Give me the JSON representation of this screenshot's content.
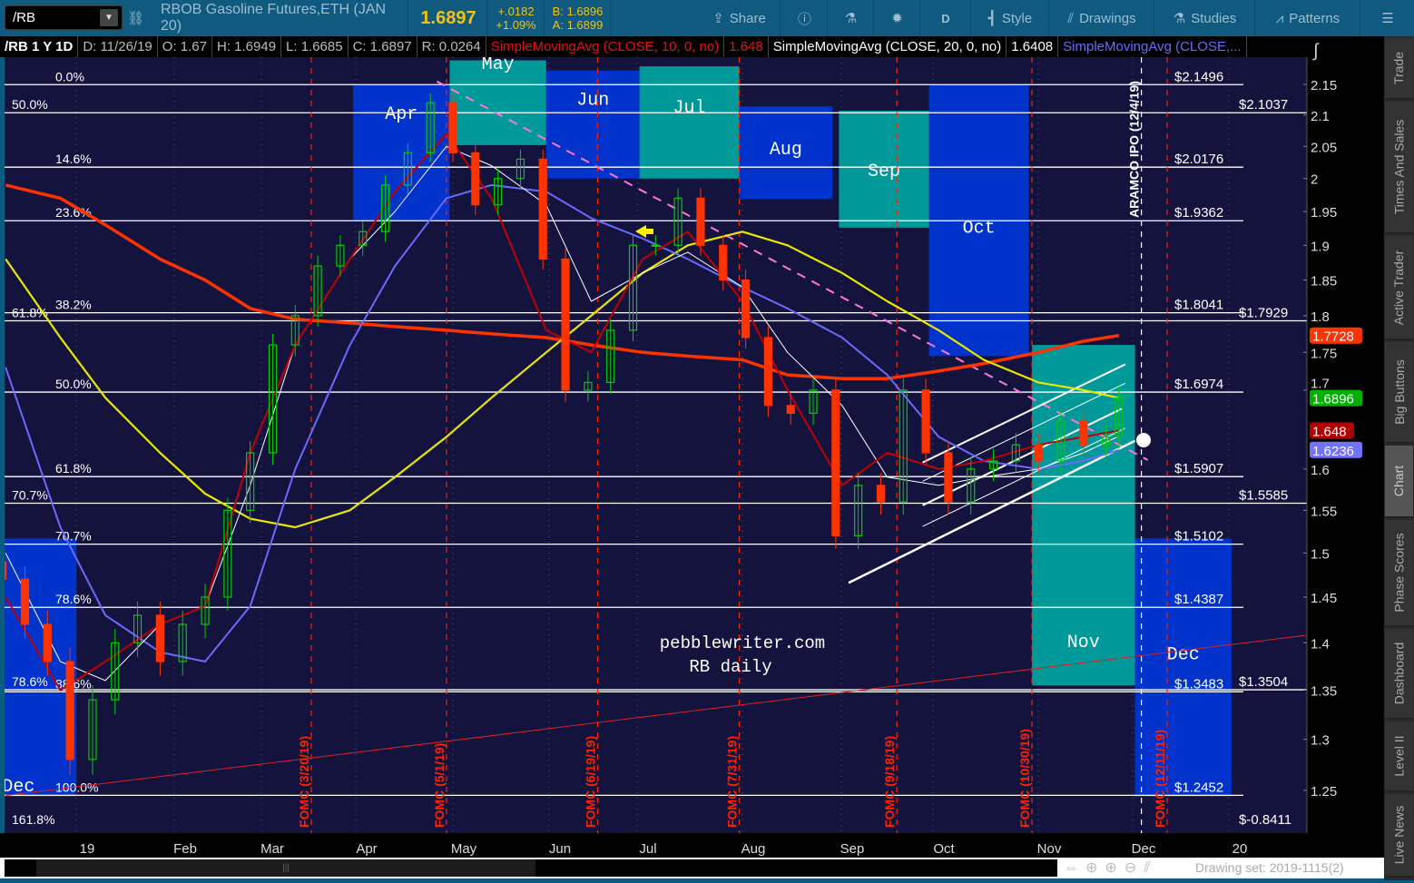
{
  "toolbar": {
    "symbol": "/RB",
    "description": "RBOB Gasoline Futures,ETH (JAN 20)",
    "last": "1.6897",
    "change": "+.0182",
    "change_pct": "+1.09%",
    "bid": "B: 1.6896",
    "ask": "A: 1.6899",
    "share": "Share",
    "period": "D",
    "style": "Style",
    "drawings": "Drawings",
    "studies": "Studies",
    "patterns": "Patterns",
    "icons": [
      "link-icon",
      "share-icon",
      "info-icon",
      "flask-icon",
      "gear-icon",
      "candle-icon",
      "drawings-icon",
      "studies-icon",
      "patterns-icon",
      "menu-icon"
    ]
  },
  "infobar": {
    "title": "/RB 1 Y 1D",
    "date": "D: 11/26/19",
    "open": "O: 1.67",
    "high": "H: 1.6949",
    "low": "L: 1.6685",
    "close": "C: 1.6897",
    "range": "R: 0.0264",
    "sma10_label": "SimpleMovingAvg (CLOSE, 10, 0, no)",
    "sma10_value": "1.648",
    "sma20_label": "SimpleMovingAvg (CLOSE, 20, 0, no)",
    "sma20_value": "1.6408",
    "sma50_label": "SimpleMovingAvg (CLOSE,..."
  },
  "sidebar": {
    "tabs": [
      "Trade",
      "Times And Sales",
      "Active Trader",
      "Big Buttons",
      "Chart",
      "Phase Scores",
      "Dashboard",
      "Level II",
      "Live News"
    ],
    "active": "Chart"
  },
  "footer": {
    "drawing_set": "Drawing set: 2019-1115(2)"
  },
  "chart_data": {
    "type": "candlestick",
    "scale": "log",
    "ylim": [
      1.21,
      2.2
    ],
    "yticks": [
      "2.15",
      "2.1",
      "2.05",
      "2",
      "1.95",
      "1.9",
      "1.85",
      "1.8",
      "1.75",
      "1.7",
      "1.6",
      "1.55",
      "1.5",
      "1.45",
      "1.4",
      "1.35",
      "1.3",
      "1.25"
    ],
    "xticks": [
      "19",
      "Feb",
      "Mar",
      "Apr",
      "May",
      "Jun",
      "Jul",
      "Aug",
      "Sep",
      "Oct",
      "Nov",
      "Dec",
      "20"
    ],
    "colors": {
      "background": "#14133e",
      "up": "#00cc00",
      "down": "#ff3300",
      "sma10": "#c00000",
      "sma20": "#ffffff",
      "sma50": "#6a6aff",
      "sma100": "#e8e800",
      "sma200": "#ff3300",
      "fib": "#ffffff",
      "fomc": "#ff2200",
      "trend": "#ff77dd",
      "box_blue": "#0033cc",
      "box_teal": "#009999"
    },
    "candles_weekly_close": [
      [
        "2018-12-14",
        1.47
      ],
      [
        "2018-12-21",
        1.42
      ],
      [
        "2018-12-28",
        1.38
      ],
      [
        "2019-01-04",
        1.28
      ],
      [
        "2019-01-11",
        1.34
      ],
      [
        "2019-01-18",
        1.4
      ],
      [
        "2019-01-25",
        1.43
      ],
      [
        "2019-02-01",
        1.38
      ],
      [
        "2019-02-08",
        1.42
      ],
      [
        "2019-02-15",
        1.45
      ],
      [
        "2019-02-22",
        1.55
      ],
      [
        "2019-03-01",
        1.62
      ],
      [
        "2019-03-08",
        1.76
      ],
      [
        "2019-03-15",
        1.8
      ],
      [
        "2019-03-22",
        1.87
      ],
      [
        "2019-03-29",
        1.9
      ],
      [
        "2019-04-05",
        1.92
      ],
      [
        "2019-04-12",
        1.99
      ],
      [
        "2019-04-19",
        2.04
      ],
      [
        "2019-04-26",
        2.12
      ],
      [
        "2019-05-03",
        2.04
      ],
      [
        "2019-05-10",
        1.96
      ],
      [
        "2019-05-17",
        2.0
      ],
      [
        "2019-05-24",
        2.03
      ],
      [
        "2019-05-31",
        1.88
      ],
      [
        "2019-06-07",
        1.7
      ],
      [
        "2019-06-14",
        1.71
      ],
      [
        "2019-06-21",
        1.78
      ],
      [
        "2019-06-28",
        1.9
      ],
      [
        "2019-07-05",
        1.9
      ],
      [
        "2019-07-12",
        1.97
      ],
      [
        "2019-07-19",
        1.9
      ],
      [
        "2019-07-26",
        1.85
      ],
      [
        "2019-08-02",
        1.77
      ],
      [
        "2019-08-09",
        1.68
      ],
      [
        "2019-08-16",
        1.67
      ],
      [
        "2019-08-23",
        1.7
      ],
      [
        "2019-08-30",
        1.52
      ],
      [
        "2019-09-06",
        1.58
      ],
      [
        "2019-09-13",
        1.56
      ],
      [
        "2019-09-20",
        1.7
      ],
      [
        "2019-09-27",
        1.62
      ],
      [
        "2019-10-04",
        1.56
      ],
      [
        "2019-10-11",
        1.6
      ],
      [
        "2019-10-18",
        1.61
      ],
      [
        "2019-10-25",
        1.63
      ],
      [
        "2019-11-01",
        1.61
      ],
      [
        "2019-11-08",
        1.66
      ],
      [
        "2019-11-15",
        1.63
      ],
      [
        "2019-11-22",
        1.64
      ],
      [
        "2019-11-26",
        1.6897
      ]
    ],
    "ma_dates": [
      "2018-12-15",
      "2019-01-01",
      "2019-01-15",
      "2019-02-01",
      "2019-02-15",
      "2019-03-01",
      "2019-03-15",
      "2019-04-01",
      "2019-04-15",
      "2019-05-01",
      "2019-05-15",
      "2019-06-01",
      "2019-06-15",
      "2019-07-01",
      "2019-07-15",
      "2019-08-01",
      "2019-08-15",
      "2019-09-01",
      "2019-09-15",
      "2019-10-01",
      "2019-10-15",
      "2019-11-01",
      "2019-11-15",
      "2019-11-26"
    ],
    "series": [
      {
        "name": "SimpleMovingAvg (CLOSE, 200)",
        "key": "sma200",
        "values": [
          1.99,
          1.97,
          1.93,
          1.88,
          1.85,
          1.81,
          1.795,
          1.79,
          1.785,
          1.78,
          1.775,
          1.77,
          1.76,
          1.75,
          1.745,
          1.74,
          1.72,
          1.715,
          1.715,
          1.725,
          1.735,
          1.75,
          1.765,
          1.7728
        ]
      },
      {
        "name": "SimpleMovingAvg (CLOSE, 100)",
        "key": "sma100",
        "values": [
          1.88,
          1.77,
          1.69,
          1.62,
          1.57,
          1.54,
          1.53,
          1.55,
          1.59,
          1.64,
          1.69,
          1.75,
          1.8,
          1.86,
          1.9,
          1.92,
          1.9,
          1.86,
          1.82,
          1.78,
          1.74,
          1.71,
          1.7,
          1.6896
        ]
      },
      {
        "name": "SimpleMovingAvg (CLOSE,...",
        "key": "sma50",
        "values": [
          1.73,
          1.53,
          1.43,
          1.39,
          1.38,
          1.44,
          1.6,
          1.76,
          1.87,
          1.97,
          1.99,
          1.98,
          1.94,
          1.91,
          1.88,
          1.84,
          1.81,
          1.77,
          1.72,
          1.64,
          1.61,
          1.6,
          1.61,
          1.6236
        ]
      },
      {
        "name": "SimpleMovingAvg (CLOSE, 20, 0, no)",
        "key": "sma20",
        "values": [
          1.5,
          1.38,
          1.36,
          1.42,
          1.44,
          1.58,
          1.76,
          1.88,
          1.95,
          2.05,
          2.02,
          1.96,
          1.82,
          1.86,
          1.89,
          1.84,
          1.75,
          1.68,
          1.59,
          1.58,
          1.59,
          1.6,
          1.62,
          1.6408
        ]
      },
      {
        "name": "SimpleMovingAvg (CLOSE, 10, 0, no)",
        "key": "sma10",
        "values": [
          1.45,
          1.35,
          1.38,
          1.42,
          1.44,
          1.62,
          1.76,
          1.88,
          1.98,
          2.07,
          1.97,
          1.78,
          1.75,
          1.88,
          1.92,
          1.82,
          1.7,
          1.58,
          1.62,
          1.6,
          1.61,
          1.63,
          1.64,
          1.648
        ]
      }
    ],
    "price_badges": [
      {
        "value": "1.7728",
        "color": "#ff3300"
      },
      {
        "value": "1.6896",
        "color": "#00b000"
      },
      {
        "value": "1.648",
        "color": "#b00000"
      },
      {
        "value": "1.6236",
        "color": "#7272ff"
      }
    ],
    "month_boxes": [
      {
        "label": "Dec",
        "from": "2018-12-01",
        "to": "2019-01-06",
        "top": 1.517,
        "bottom": 1.244,
        "color": "blue"
      },
      {
        "label": "Apr",
        "from": "2019-04-02",
        "to": "2019-05-02",
        "top": 2.15,
        "bottom": 1.937,
        "color": "blue"
      },
      {
        "label": "May",
        "from": "2019-05-02",
        "to": "2019-06-01",
        "top": 2.19,
        "bottom": 2.052,
        "color": "teal"
      },
      {
        "label": "Jun",
        "from": "2019-06-01",
        "to": "2019-06-30",
        "top": 2.173,
        "bottom": 2.0,
        "color": "blue"
      },
      {
        "label": "Jul",
        "from": "2019-06-30",
        "to": "2019-07-31",
        "top": 2.18,
        "bottom": 2.0,
        "color": "teal"
      },
      {
        "label": "Aug",
        "from": "2019-07-31",
        "to": "2019-08-29",
        "top": 2.114,
        "bottom": 1.969,
        "color": "blue"
      },
      {
        "label": "Sep",
        "from": "2019-08-31",
        "to": "2019-09-28",
        "top": 2.107,
        "bottom": 1.926,
        "color": "teal"
      },
      {
        "label": "Oct",
        "from": "2019-09-28",
        "to": "2019-10-29",
        "top": 2.15,
        "bottom": 1.745,
        "color": "blue"
      },
      {
        "label": "Nov",
        "from": "2019-10-30",
        "to": "2019-12-01",
        "top": 1.76,
        "bottom": 1.355,
        "color": "teal"
      },
      {
        "label": "Dec",
        "from": "2019-12-01",
        "to": "2019-12-31",
        "top": 1.517,
        "bottom": 1.244,
        "color": "blue"
      }
    ],
    "fib_levels": [
      {
        "pct": "0.0%",
        "price": 2.1496,
        "label": "$2.1496",
        "set": "a"
      },
      {
        "pct": "50.0%",
        "price": 2.1037,
        "label": "$2.1037",
        "set": "b"
      },
      {
        "pct": "14.6%",
        "price": 2.0176,
        "label": "$2.0176",
        "set": "a"
      },
      {
        "pct": "23.6%",
        "price": 1.9362,
        "label": "$1.9362",
        "set": "a"
      },
      {
        "pct": "38.2%",
        "price": 1.8041,
        "label": "$1.8041",
        "set": "a"
      },
      {
        "pct": "61.8%",
        "price": 1.7929,
        "label": "$1.7929",
        "set": "b"
      },
      {
        "pct": "50.0%",
        "price": 1.6974,
        "label": "$1.6974",
        "set": "a"
      },
      {
        "pct": "61.8%",
        "price": 1.5907,
        "label": "$1.5907",
        "set": "a"
      },
      {
        "pct": "70.7%",
        "price": 1.5585,
        "label": "$1.5585",
        "set": "b"
      },
      {
        "pct": "70.7%",
        "price": 1.5102,
        "label": "$1.5102",
        "set": "a"
      },
      {
        "pct": "78.6%",
        "price": 1.4387,
        "label": "$1.4387",
        "set": "a"
      },
      {
        "pct": "88.6%",
        "price": 1.3483,
        "label": "$1.3483",
        "set": "a"
      },
      {
        "pct": "78.6%",
        "price": 1.3504,
        "label": "$1.3504",
        "set": "b"
      },
      {
        "pct": "100.0%",
        "price": 1.2452,
        "label": "$1.2452",
        "set": "a"
      },
      {
        "pct": "161.8%",
        "price": null,
        "label": "$-0.8411",
        "set": "b"
      }
    ],
    "event_lines": [
      {
        "date": "2019-03-20",
        "label": "FOMC (3/20/19)",
        "kind": "fomc"
      },
      {
        "date": "2019-05-01",
        "label": "FOMC (5/1/19)",
        "kind": "fomc"
      },
      {
        "date": "2019-06-17",
        "label": "FOMC (6/19/19)",
        "kind": "fomc"
      },
      {
        "date": "2019-07-31",
        "label": "FOMC (7/31/19)",
        "kind": "fomc"
      },
      {
        "date": "2019-09-18",
        "label": "FOMC (9/18/19)",
        "kind": "fomc"
      },
      {
        "date": "2019-10-30",
        "label": "FOMC (10/30/19)",
        "kind": "fomc"
      },
      {
        "date": "2019-12-11",
        "label": "FOMC (12/11/19)",
        "kind": "fomc"
      },
      {
        "date": "2019-12-03",
        "label": "ARAMCO IPO (12/4/19)",
        "kind": "event"
      }
    ],
    "trendlines": [
      {
        "from": [
          "2019-04-28",
          2.155
        ],
        "to": [
          "2019-12-05",
          1.611
        ],
        "style": "pink-dashed"
      },
      {
        "from": [
          "2018-12-15",
          1.245
        ],
        "to": [
          "2020-01-23",
          1.408
        ],
        "style": "red-thin"
      },
      {
        "from": [
          "2019-09-03",
          1.466
        ],
        "to": [
          "2019-12-01",
          1.635
        ],
        "style": "white-thick"
      },
      {
        "from": [
          "2019-09-26",
          1.608
        ],
        "to": [
          "2019-11-28",
          1.734
        ],
        "style": "white"
      },
      {
        "from": [
          "2019-09-26",
          1.556
        ],
        "to": [
          "2019-11-27",
          1.676
        ],
        "style": "white"
      },
      {
        "from": [
          "2019-09-26",
          1.585
        ],
        "to": [
          "2019-11-28",
          1.709
        ],
        "style": "white-thin"
      },
      {
        "from": [
          "2019-09-26",
          1.531
        ],
        "to": [
          "2019-11-28",
          1.651
        ],
        "style": "white-thin"
      }
    ],
    "annotations": {
      "watermark_line1": "pebblewriter.com",
      "watermark_line2": "RB daily"
    }
  }
}
